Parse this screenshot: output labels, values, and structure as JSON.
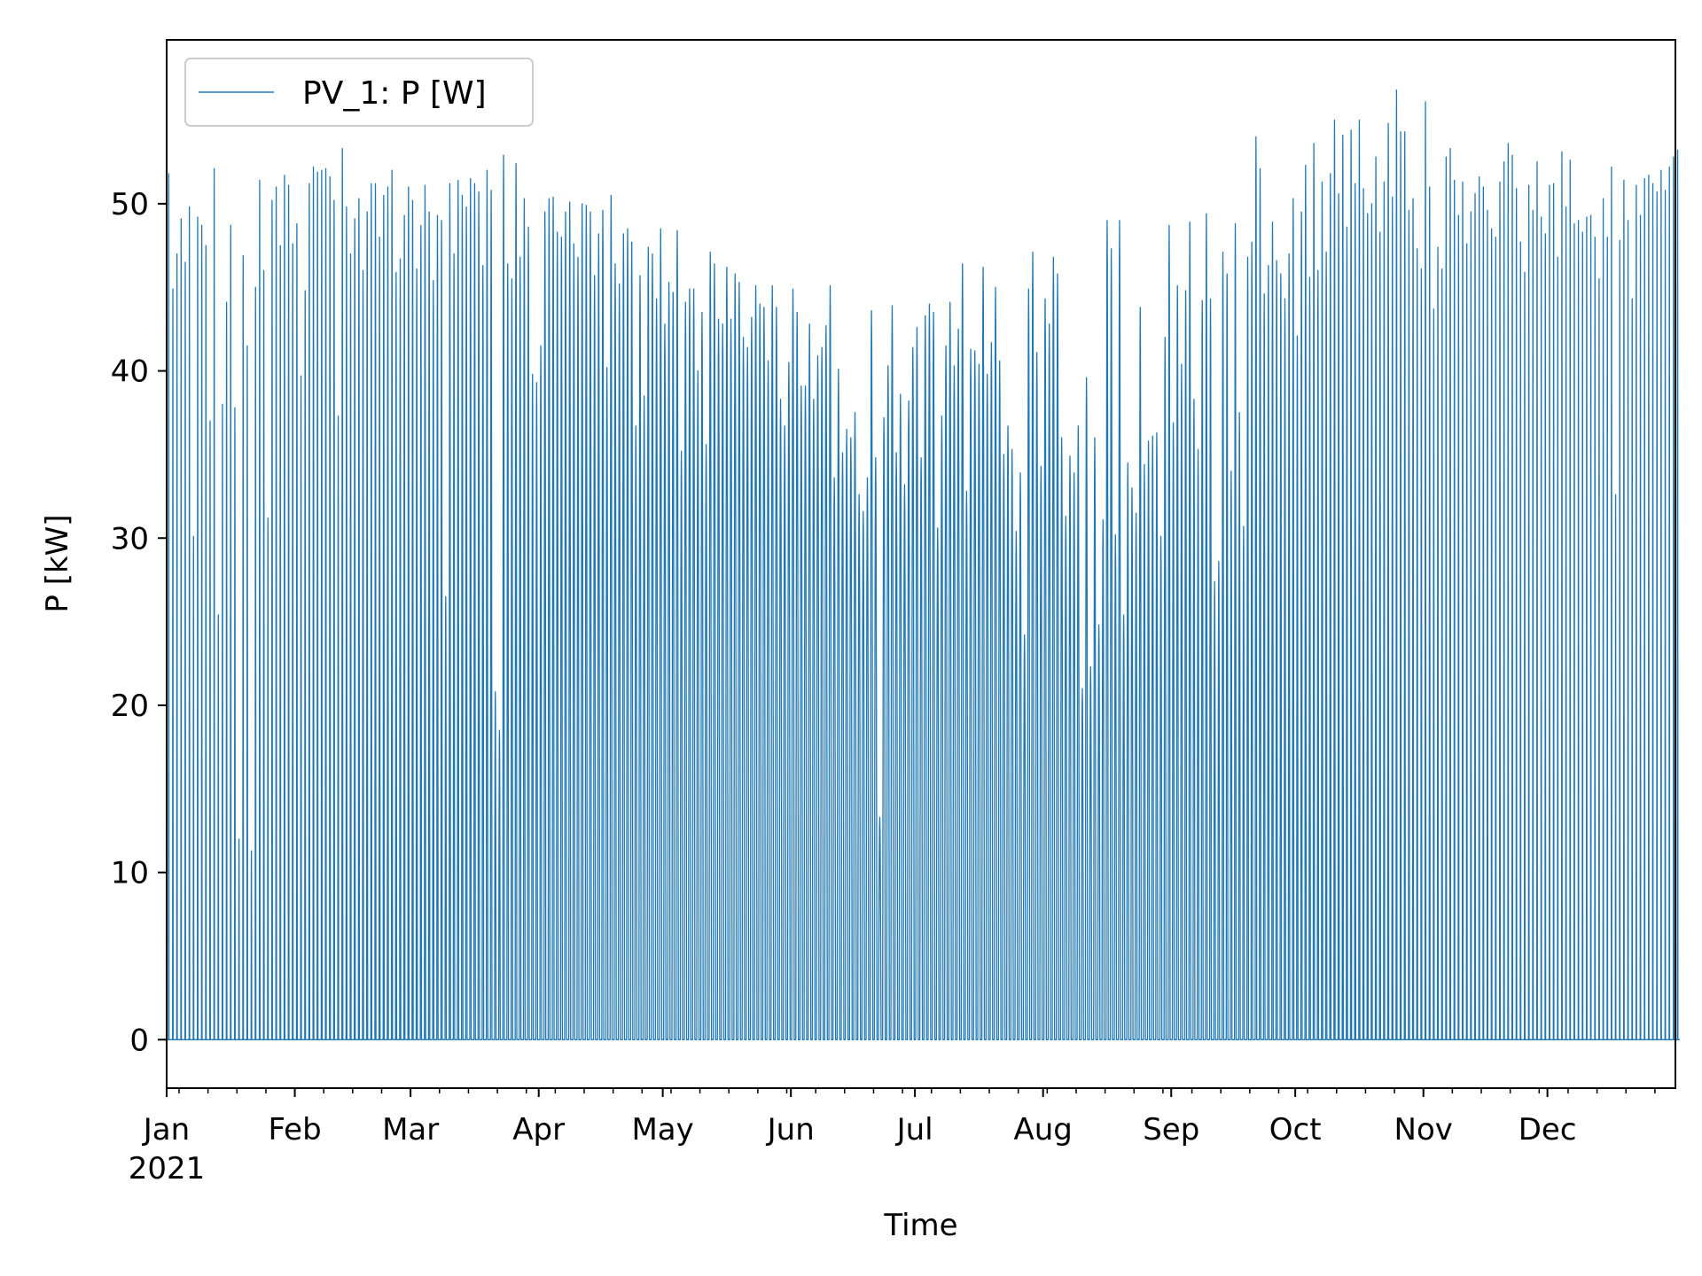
{
  "chart_data": {
    "type": "line",
    "title": "",
    "xlabel": "Time",
    "ylabel": "P [kW]",
    "xlim": [
      "2021-01-01",
      "2021-12-31T23:00"
    ],
    "ylim": [
      -2.9,
      59.8
    ],
    "grid": false,
    "legend_position": "top-left",
    "x_ticks": [
      {
        "date": "2021-01-01",
        "label": "Jan",
        "sublabel": "2021"
      },
      {
        "date": "2021-02-01",
        "label": "Feb"
      },
      {
        "date": "2021-03-01",
        "label": "Mar"
      },
      {
        "date": "2021-04-01",
        "label": "Apr"
      },
      {
        "date": "2021-05-01",
        "label": "May"
      },
      {
        "date": "2021-06-01",
        "label": "Jun"
      },
      {
        "date": "2021-07-01",
        "label": "Jul"
      },
      {
        "date": "2021-08-01",
        "label": "Aug"
      },
      {
        "date": "2021-09-01",
        "label": "Sep"
      },
      {
        "date": "2021-10-01",
        "label": "Oct"
      },
      {
        "date": "2021-11-01",
        "label": "Nov"
      },
      {
        "date": "2021-12-01",
        "label": "Dec"
      }
    ],
    "y_ticks": [
      0,
      10,
      20,
      30,
      40,
      50
    ],
    "series": [
      {
        "name": "PV_1: P [W]",
        "color": "#1f77b4",
        "resolution": "daily peak (kW); each day's profile drops to 0 at night",
        "monthly_daily_peaks": {
          "Jan": [
            51.8,
            44.9,
            47.0,
            49.1,
            46.5,
            49.8,
            30.1,
            49.2,
            48.7,
            47.5,
            37.0,
            52.1,
            25.4,
            38.0,
            44.1,
            48.7,
            37.8,
            12.0,
            46.9,
            41.5,
            11.3,
            45.0,
            51.4,
            46.0,
            31.2,
            50.2,
            51.0,
            47.5,
            51.7,
            51.1,
            47.6
          ],
          "Feb": [
            48.8,
            39.7,
            44.8,
            51.2,
            52.2,
            51.9,
            52.0,
            52.1,
            51.6,
            50.2,
            37.3,
            53.3,
            49.8,
            47.0,
            49.1,
            50.3,
            46.0,
            49.5,
            51.2,
            51.2,
            48.0,
            50.5,
            51.0,
            52.0,
            45.9,
            46.7,
            49.3,
            51.0,
            50.2
          ],
          "Mar": [
            46.1,
            48.7,
            51.1,
            49.5,
            45.4,
            49.3,
            49.0,
            26.5,
            51.2,
            47.0,
            51.4,
            50.5,
            49.8,
            51.5,
            51.2,
            50.7,
            46.3,
            52.0,
            50.8,
            20.8,
            18.5,
            52.9,
            46.4,
            45.5,
            52.4,
            46.8,
            50.3,
            48.6,
            39.8,
            39.3,
            41.5
          ],
          "Apr": [
            49.5,
            50.3,
            50.4,
            48.3,
            48.0,
            49.5,
            50.1,
            47.6,
            46.8,
            50.0,
            49.9,
            49.5,
            45.7,
            48.2,
            49.6,
            40.2,
            50.5,
            46.4,
            45.2,
            48.2,
            48.5,
            47.7,
            36.7,
            45.7,
            38.5,
            47.4,
            47.0,
            44.3,
            48.5,
            42.8
          ],
          "May": [
            45.3,
            44.7,
            48.4,
            35.2,
            44.1,
            44.9,
            44.9,
            40.0,
            43.5,
            35.6,
            47.1,
            46.4,
            43.1,
            42.8,
            46.2,
            43.1,
            45.8,
            45.3,
            42.0,
            41.4,
            43.2,
            45.1,
            44.0,
            43.8,
            40.6,
            45.1,
            43.8,
            38.3,
            36.7,
            40.5,
            44.9
          ],
          "Jun": [
            43.5,
            39.1,
            39.1,
            42.8,
            38.3,
            40.9,
            41.4,
            42.7,
            45.1,
            33.6,
            40.1,
            35.1,
            36.5,
            36.0,
            37.5,
            32.6,
            31.6,
            33.6,
            43.6,
            34.8,
            13.3,
            37.2,
            40.3,
            43.9,
            35.1,
            38.6,
            33.2,
            38.2,
            41.4,
            42.6
          ],
          "Jul": [
            34.8,
            43.3,
            44.0,
            43.5,
            30.6,
            37.3,
            41.5,
            44.1,
            40.3,
            42.5,
            46.4,
            32.8,
            41.3,
            41.2,
            40.4,
            46.2,
            39.8,
            41.7,
            45.0,
            40.6,
            35.0,
            36.7,
            35.3,
            30.4,
            33.9,
            24.2,
            44.9,
            47.1,
            41.1,
            34.3,
            44.3
          ],
          "Aug": [
            42.8,
            46.8,
            45.8,
            36.0,
            31.3,
            34.9,
            33.9,
            36.7,
            21.0,
            39.6,
            22.3,
            36.0,
            24.8,
            31.1,
            49.0,
            47.3,
            30.2,
            49.0,
            25.4,
            34.5,
            33.0,
            31.5,
            43.8,
            34.4,
            35.8,
            36.1,
            36.3,
            30.1,
            42.0,
            48.7,
            36.9
          ],
          "Sep": [
            45.1,
            40.4,
            44.8,
            48.9,
            38.3,
            35.3,
            44.2,
            49.4,
            44.3,
            27.4,
            28.6,
            47.1,
            45.8,
            34.0,
            48.8,
            37.5,
            30.7,
            46.8,
            47.7,
            54.0,
            52.1,
            44.6,
            46.3,
            48.9,
            46.6,
            45.8,
            44.3,
            47.0,
            50.3,
            42.1
          ],
          "Oct": [
            49.5,
            52.3,
            45.6,
            53.6,
            46.0,
            51.3,
            47.1,
            51.8,
            55.0,
            50.6,
            54.1,
            48.6,
            54.4,
            51.2,
            55.0,
            50.9,
            49.4,
            50.0,
            52.8,
            48.3,
            51.3,
            54.8,
            50.4,
            56.8,
            54.3,
            54.3,
            49.6,
            50.3,
            47.3,
            46.1,
            56.1
          ],
          "Nov": [
            51.0,
            43.7,
            47.4,
            46.1,
            52.8,
            53.3,
            51.4,
            49.3,
            51.3,
            47.6,
            49.5,
            50.6,
            51.6,
            51.0,
            49.6,
            48.5,
            48.0,
            51.3,
            52.5,
            53.6,
            52.9,
            50.9,
            47.7,
            45.9,
            51.1,
            49.6,
            52.5,
            49.2,
            48.2,
            51.1
          ],
          "Dec": [
            51.2,
            46.8,
            53.1,
            49.8,
            52.6,
            48.8,
            49.0,
            48.3,
            49.2,
            49.3,
            48.0,
            45.5,
            50.3,
            48.0,
            52.2,
            32.6,
            47.8,
            51.4,
            49.0,
            44.3,
            51.1,
            49.3,
            51.5,
            51.7,
            51.2,
            50.7,
            52.0,
            50.8,
            52.2,
            52.8,
            53.2
          ]
        }
      }
    ]
  }
}
